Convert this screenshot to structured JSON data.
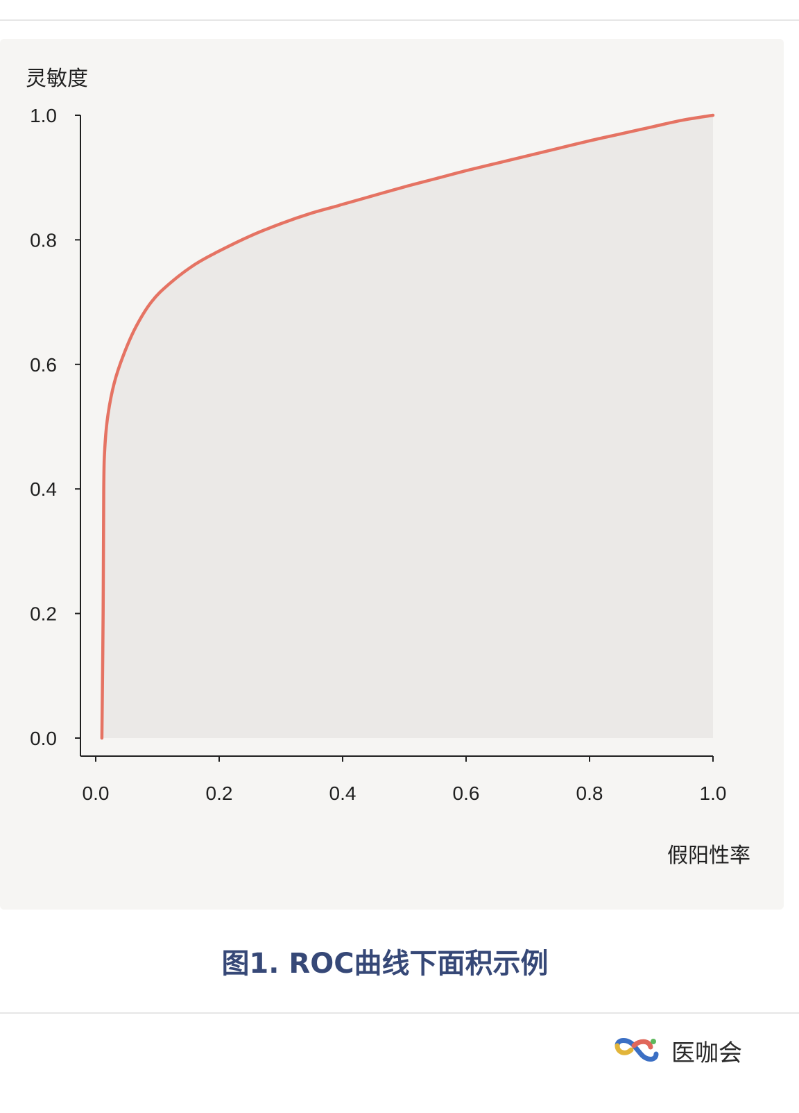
{
  "chart_data": {
    "type": "area",
    "ylabel": "灵敏度",
    "xlabel": "假阳性率",
    "xlim": [
      0.0,
      1.0
    ],
    "ylim": [
      0.0,
      1.0
    ],
    "x_ticks": [
      "0.0",
      "0.2",
      "0.4",
      "0.6",
      "0.8",
      "1.0"
    ],
    "y_ticks": [
      "0.0",
      "0.2",
      "0.4",
      "0.6",
      "0.8",
      "1.0"
    ],
    "grid": false,
    "line_color": "#e57363",
    "fill_color": "#ebe9e7",
    "series": [
      {
        "x": [
          0.01,
          0.012,
          0.013,
          0.015,
          0.02,
          0.03,
          0.045,
          0.065,
          0.09,
          0.12,
          0.16,
          0.2,
          0.25,
          0.3,
          0.35,
          0.39,
          0.4,
          0.45,
          0.5,
          0.55,
          0.6,
          0.65,
          0.7,
          0.75,
          0.8,
          0.85,
          0.9,
          0.95,
          1.0
        ],
        "y": [
          0.0,
          0.2,
          0.4,
          0.47,
          0.52,
          0.57,
          0.615,
          0.66,
          0.7,
          0.73,
          0.76,
          0.782,
          0.806,
          0.826,
          0.843,
          0.854,
          0.857,
          0.871,
          0.885,
          0.898,
          0.911,
          0.923,
          0.935,
          0.947,
          0.959,
          0.97,
          0.981,
          0.992,
          1.0
        ]
      }
    ]
  },
  "caption": "图1. ROC曲线下面积示例",
  "brand": {
    "name": "医咖会"
  }
}
